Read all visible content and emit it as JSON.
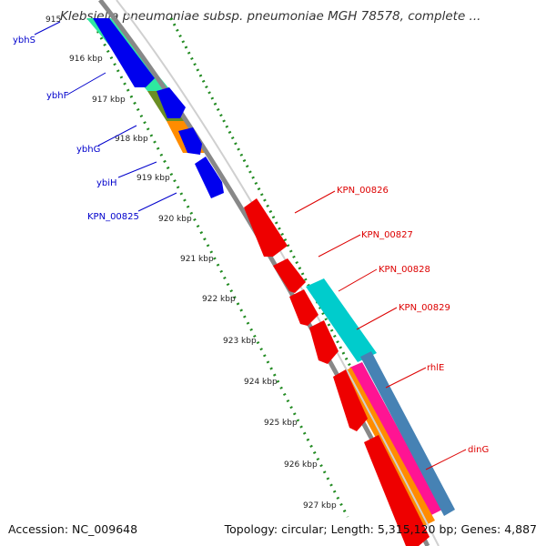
{
  "title": "Klebsiella pneumoniae subsp. pneumoniae MGH 78578, complete ...",
  "footer": {
    "accession": "Accession: NC_009648",
    "summary": "Topology: circular; Length: 5,315,120 bp; Genes: 4,887"
  },
  "colors": {
    "forward_gene": "#0000ee",
    "reverse_gene": "#ee0000",
    "forward_label": "#0000cc",
    "reverse_label": "#dd0000",
    "backbone": "#888888",
    "tick": "#228b22"
  },
  "scale": {
    "labels": [
      "915",
      "916 kbp",
      "917 kbp",
      "918 kbp",
      "919 kbp",
      "920 kbp",
      "921 kbp",
      "922 kbp",
      "923 kbp",
      "924 kbp",
      "925 kbp",
      "926 kbp",
      "927 kbp"
    ]
  },
  "forward_genes": [
    {
      "label": "ybhS"
    },
    {
      "label": "ybhF"
    },
    {
      "label": "ybhG"
    },
    {
      "label": "ybiH"
    },
    {
      "label": "KPN_00825"
    }
  ],
  "reverse_genes": [
    {
      "label": "KPN_00826"
    },
    {
      "label": "KPN_00827"
    },
    {
      "label": "KPN_00828"
    },
    {
      "label": "KPN_00829"
    },
    {
      "label": "rhlE"
    },
    {
      "label": "dinG"
    }
  ]
}
